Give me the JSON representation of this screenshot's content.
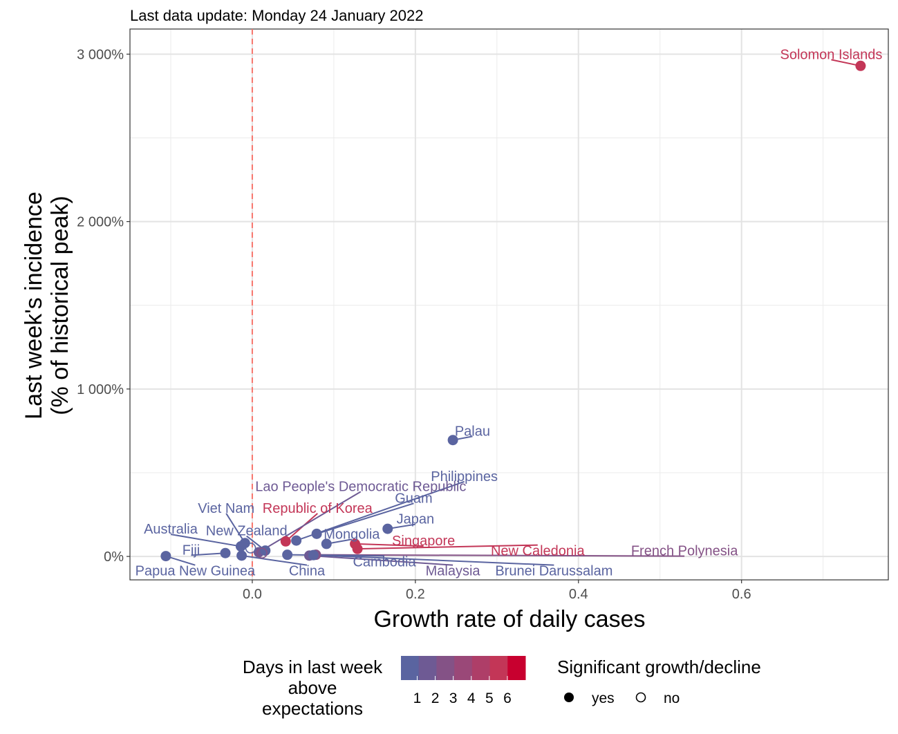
{
  "subtitle": "Last data update: Monday 24 January 2022",
  "chart_data": {
    "type": "scatter",
    "xlabel": "Growth rate of daily cases",
    "ylabel_lines": [
      "Last week's incidence",
      "(% of historical peak)"
    ],
    "xlim": [
      -0.15,
      0.78
    ],
    "ylim": [
      -140,
      3150
    ],
    "x_ticks": [
      {
        "value": 0.0,
        "label": "0.0"
      },
      {
        "value": 0.2,
        "label": "0.2"
      },
      {
        "value": 0.4,
        "label": "0.4"
      },
      {
        "value": 0.6,
        "label": "0.6"
      }
    ],
    "y_ticks": [
      {
        "value": 0,
        "label": "0%"
      },
      {
        "value": 1000,
        "label": "1 000%"
      },
      {
        "value": 2000,
        "label": "2 000%"
      },
      {
        "value": 3000,
        "label": "3 000%"
      }
    ],
    "grid": true,
    "reference_line": {
      "x": 0,
      "color": "#F8766D",
      "style": "dashed"
    },
    "points": [
      {
        "name": "Solomon Islands",
        "x": 0.746,
        "y": 2930,
        "days": 5,
        "significant": true,
        "label_x": 0.71,
        "label_y": 3000
      },
      {
        "name": "Palau",
        "x": 0.246,
        "y": 695,
        "days": 0,
        "significant": true,
        "label_x": 0.27,
        "label_y": 750
      },
      {
        "name": "Philippines",
        "x": 0.054,
        "y": 95,
        "days": 0,
        "significant": true,
        "label_x": 0.26,
        "label_y": 480
      },
      {
        "name": "Guam",
        "x": 0.079,
        "y": 135,
        "days": 0,
        "significant": true,
        "label_x": 0.198,
        "label_y": 350
      },
      {
        "name": "Japan",
        "x": 0.166,
        "y": 165,
        "days": 0,
        "significant": true,
        "label_x": 0.2,
        "label_y": 225
      },
      {
        "name": "Mongolia",
        "x": 0.091,
        "y": 75,
        "days": 0,
        "significant": true,
        "label_x": 0.122,
        "label_y": 135
      },
      {
        "name": "Singapore",
        "x": 0.126,
        "y": 75,
        "days": 5,
        "significant": true,
        "label_x": 0.21,
        "label_y": 95
      },
      {
        "name": "New Caledonia",
        "x": 0.129,
        "y": 45,
        "days": 5,
        "significant": true,
        "label_x": 0.35,
        "label_y": 35
      },
      {
        "name": "French Polynesia",
        "x": 0.078,
        "y": 10,
        "days": 2,
        "significant": true,
        "label_x": 0.53,
        "label_y": 35
      },
      {
        "name": "Republic of Korea",
        "x": 0.041,
        "y": 90,
        "days": 5,
        "significant": true,
        "label_x": 0.08,
        "label_y": 290
      },
      {
        "name": "Lao People's Democratic Republic",
        "x": 0.008,
        "y": 25,
        "days": 1,
        "significant": true,
        "label_x": 0.133,
        "label_y": 420
      },
      {
        "name": "Viet Nam",
        "x": -0.009,
        "y": 80,
        "days": 0,
        "significant": true,
        "label_x": -0.032,
        "label_y": 290
      },
      {
        "name": "New Zealand",
        "x": 0.016,
        "y": 35,
        "days": 0,
        "significant": true,
        "label_x": -0.007,
        "label_y": 155
      },
      {
        "name": "Australia",
        "x": -0.014,
        "y": 60,
        "days": 0,
        "significant": true,
        "label_x": -0.1,
        "label_y": 165
      },
      {
        "name": "Fiji",
        "x": -0.033,
        "y": 20,
        "days": 0,
        "significant": true,
        "label_x": -0.075,
        "label_y": 40
      },
      {
        "name": "Papua New Guinea",
        "x": -0.106,
        "y": 2,
        "days": 0,
        "significant": true,
        "label_x": -0.07,
        "label_y": -85
      },
      {
        "name": "China",
        "x": -0.013,
        "y": 5,
        "days": 0,
        "significant": true,
        "label_x": 0.067,
        "label_y": -85
      },
      {
        "name": "Cambodia",
        "x": 0.043,
        "y": 10,
        "days": 0,
        "significant": true,
        "label_x": 0.162,
        "label_y": -30
      },
      {
        "name": "Malaysia",
        "x": 0.07,
        "y": 5,
        "days": 1,
        "significant": true,
        "label_x": 0.246,
        "label_y": -85
      },
      {
        "name": "Brunei Darussalam",
        "x": 0.075,
        "y": 8,
        "days": 0,
        "significant": true,
        "label_x": 0.37,
        "label_y": -85
      }
    ],
    "extra_points": [
      {
        "x": -0.002,
        "y": 50,
        "days": 0,
        "significant": false
      },
      {
        "x": 0.012,
        "y": 20,
        "days": 2,
        "significant": false
      }
    ]
  },
  "legend": {
    "color_title_lines": [
      "Days in last week",
      "above",
      "expectations"
    ],
    "color_stops": [
      "#5A64A0",
      "#6E5A94",
      "#845286",
      "#9A4878",
      "#AE3E68",
      "#C33657",
      "#C8002F"
    ],
    "color_labels": [
      "1",
      "2",
      "3",
      "4",
      "5",
      "6"
    ],
    "shape_title": "Significant growth/decline",
    "shape_yes": "yes",
    "shape_no": "no"
  }
}
